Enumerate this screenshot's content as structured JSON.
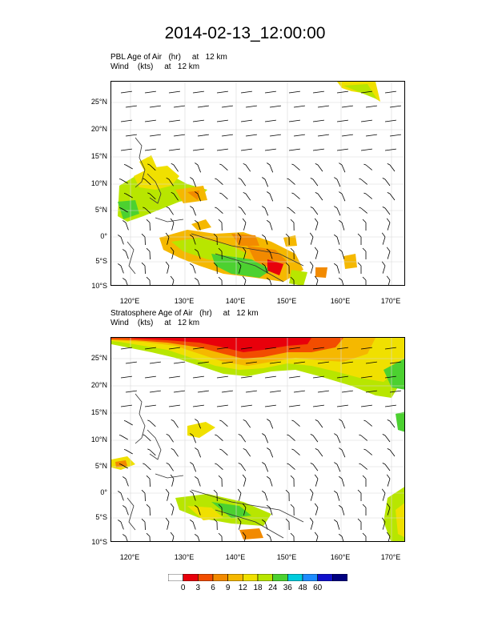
{
  "title": "2014-02-13_12:00:00",
  "panels": [
    {
      "line1": "PBL Age of Air   (hr)     at   12 km",
      "line2": "Wind    (kts)     at   12 km"
    },
    {
      "line1": "Stratosphere Age of Air   (hr)     at   12 km",
      "line2": "Wind    (kts)     at   12 km"
    }
  ],
  "lat_labels": [
    "25°N",
    "20°N",
    "15°N",
    "10°N",
    "5°N",
    "0°",
    "5°S",
    "10°S"
  ],
  "lon_labels": [
    "120°E",
    "130°E",
    "140°E",
    "150°E",
    "160°E",
    "170°E"
  ],
  "colorbar": {
    "labels": [
      "0",
      "3",
      "6",
      "9",
      "12",
      "18",
      "24",
      "36",
      "48",
      "60"
    ],
    "colors": [
      "#ffffff",
      "#e8000b",
      "#f24d00",
      "#f28a00",
      "#f5b800",
      "#f0e000",
      "#b8e600",
      "#4cd130",
      "#00ccdd",
      "#1e8cff",
      "#1010cc",
      "#000080"
    ]
  }
}
